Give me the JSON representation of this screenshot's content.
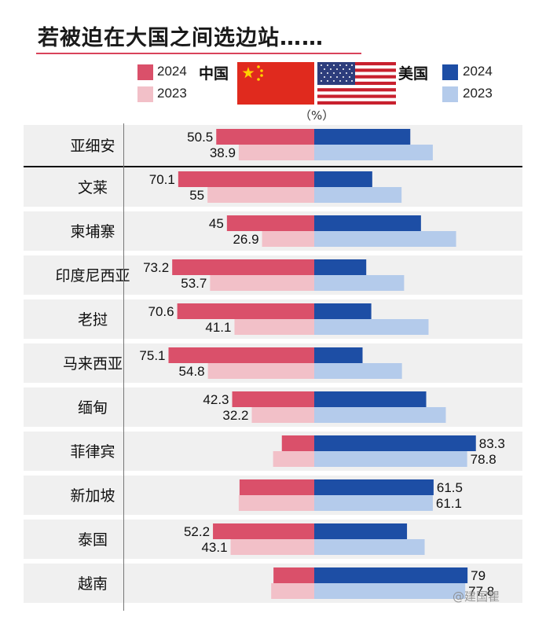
{
  "title": "若被迫在大国之间选边站……",
  "legend": {
    "china_label": "中国",
    "us_label": "美国",
    "year_2024": "2024",
    "year_2023": "2023"
  },
  "unit": "（%）",
  "colors": {
    "china_2024": "#da506a",
    "china_2023": "#f2c0c8",
    "us_2024": "#1d4ea5",
    "us_2023": "#b4cbeb",
    "row_band": "#f0f0f0",
    "title_rule": "#d9435a"
  },
  "watermark": "@建国瞿",
  "chart_data": {
    "type": "bar",
    "title": "若被迫在大国之间选边站……",
    "unit": "%",
    "categories": [
      "亚细安",
      "文莱",
      "柬埔寨",
      "印度尼西亚",
      "老挝",
      "马来西亚",
      "缅甸",
      "菲律宾",
      "新加坡",
      "泰国",
      "越南"
    ],
    "series": [
      {
        "name": "中国 2024",
        "values": [
          50.5,
          70.1,
          45,
          73.2,
          70.6,
          75.1,
          42.3,
          16.7,
          38.5,
          52.2,
          21
        ]
      },
      {
        "name": "中国 2023",
        "values": [
          38.9,
          55,
          26.9,
          53.7,
          41.1,
          54.8,
          32.2,
          21.2,
          38.9,
          43.1,
          22.2
        ]
      },
      {
        "name": "美国 2024",
        "values": [
          49.5,
          29.9,
          55,
          26.8,
          29.4,
          24.9,
          57.7,
          83.3,
          61.5,
          47.8,
          79
        ]
      },
      {
        "name": "美国 2023",
        "values": [
          61.1,
          45,
          73.1,
          46.3,
          58.9,
          45.2,
          67.8,
          78.8,
          61.1,
          56.9,
          77.8
        ]
      }
    ],
    "labels": {
      "china_2024": [
        "50.5",
        "70.1",
        "45",
        "73.2",
        "70.6",
        "75.1",
        "42.3",
        "",
        "",
        "52.2",
        ""
      ],
      "china_2023": [
        "38.9",
        "55",
        "26.9",
        "53.7",
        "41.1",
        "54.8",
        "32.2",
        "",
        "",
        "43.1",
        ""
      ],
      "us_2024": [
        "",
        "",
        "",
        "",
        "",
        "",
        "",
        "83.3",
        "61.5",
        "",
        "79"
      ],
      "us_2023": [
        "",
        "",
        "",
        "",
        "",
        "",
        "",
        "78.8",
        "61.1",
        "",
        "77.8"
      ]
    },
    "xlim": [
      0,
      100
    ],
    "grid": false
  }
}
